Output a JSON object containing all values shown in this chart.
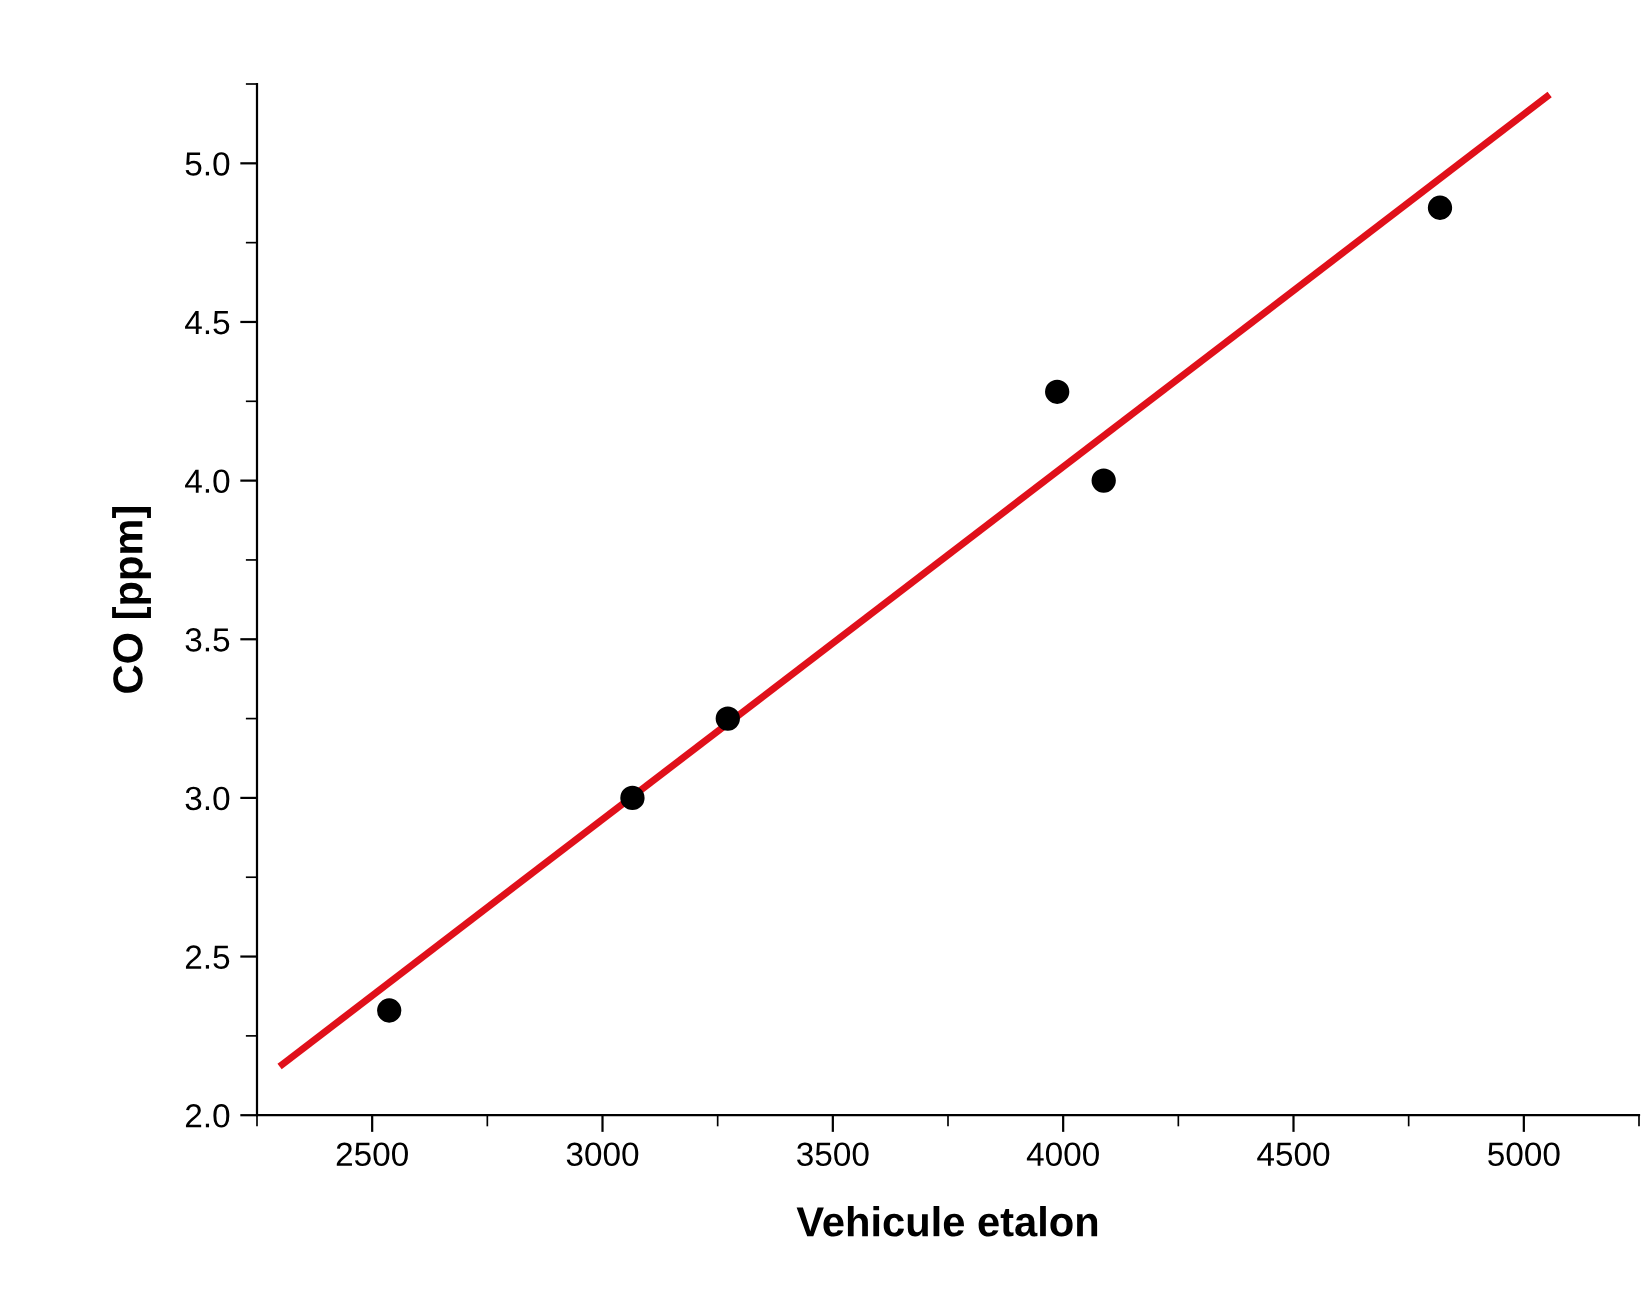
{
  "chart_data": {
    "type": "scatter",
    "xlabel": "Vehicule etalon",
    "ylabel": "CO [ppm]",
    "xlim": [
      2250,
      5250
    ],
    "xticks": [
      2500,
      3000,
      3500,
      4000,
      4500,
      5000
    ],
    "ylim": [
      2.0,
      5.25
    ],
    "yticks": [
      {
        "value": 2.0,
        "label": "2.0"
      },
      {
        "value": 2.5,
        "label": "2.5"
      },
      {
        "value": 3.0,
        "label": "3.0"
      },
      {
        "value": 3.5,
        "label": "3.5"
      },
      {
        "value": 4.0,
        "label": "4.0"
      },
      {
        "value": 4.5,
        "label": "4.5"
      },
      {
        "value": 5.0,
        "label": "5.0"
      }
    ],
    "grid": false,
    "marker": "circle",
    "series": [
      {
        "color": "#000000",
        "x": [
          2537,
          3065,
          3272,
          3987,
          4088,
          4818
        ],
        "values": [
          2.33,
          3.0,
          3.25,
          4.28,
          4.0,
          4.86
        ]
      },
      {
        "type": "line",
        "color": "#e0101a",
        "x": [
          2305,
          5050
        ],
        "values": [
          2.16,
          5.21
        ],
        "marker": "none",
        "line_style": "solid"
      }
    ]
  }
}
